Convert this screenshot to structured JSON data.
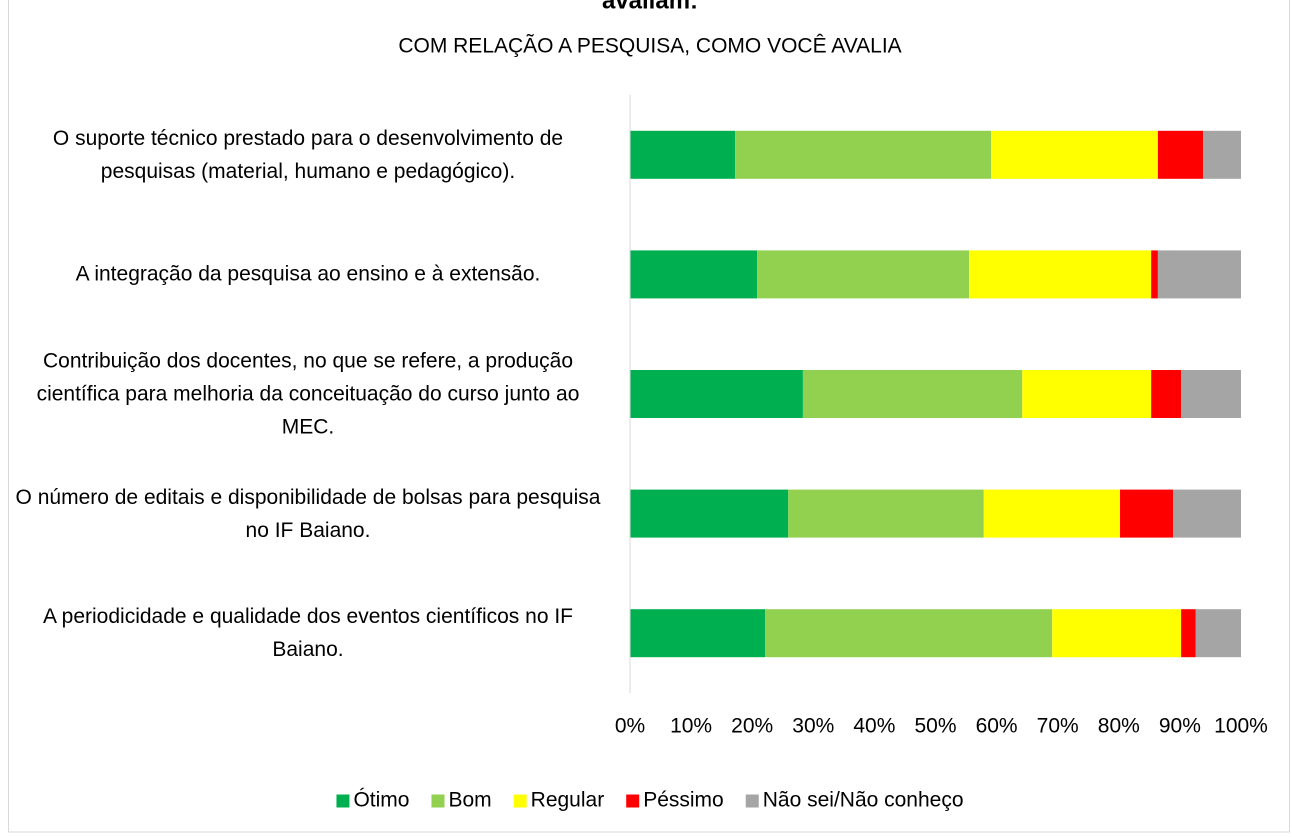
{
  "chart_data": {
    "type": "stacked-bar-horizontal",
    "title": "avaliam:",
    "subtitle": "COM RELAÇÃO A PESQUISA, COMO VOCÊ AVALIA",
    "categories": [
      "O suporte técnico prestado para o desenvolvimento de pesquisas (material, humano e pedagógico).",
      "A integração da pesquisa ao ensino e à extensão.",
      "Contribuição dos docentes, no que se refere, a produção científica para melhoria da conceituação do curso junto ao MEC.",
      "O número de editais e disponibilidade de bolsas para pesquisa no IF Baiano.",
      "A periodicidade e qualidade dos eventos científicos no IF Baiano."
    ],
    "series": [
      {
        "name": "Ótimo",
        "color": "#00b050",
        "values": [
          17.2,
          20.8,
          28.3,
          25.9,
          22.1
        ]
      },
      {
        "name": "Bom",
        "color": "#92d050",
        "values": [
          41.9,
          34.7,
          35.9,
          32.0,
          47.0
        ]
      },
      {
        "name": "Regular",
        "color": "#ffff00",
        "values": [
          27.3,
          29.8,
          21.1,
          22.3,
          21.1
        ]
      },
      {
        "name": "Péssimo",
        "color": "#ff0000",
        "values": [
          7.4,
          1.1,
          4.9,
          8.7,
          2.4
        ]
      },
      {
        "name": "Não sei/Não conheço",
        "color": "#a5a5a5",
        "values": [
          6.2,
          13.6,
          9.8,
          11.1,
          7.4
        ]
      }
    ],
    "xlim": [
      0,
      100
    ],
    "xticks": [
      {
        "value": 0,
        "label": "0%"
      },
      {
        "value": 10,
        "label": "10%"
      },
      {
        "value": 20,
        "label": "20%"
      },
      {
        "value": 30,
        "label": "30%"
      },
      {
        "value": 40,
        "label": "40%"
      },
      {
        "value": 50,
        "label": "50%"
      },
      {
        "value": 60,
        "label": "60%"
      },
      {
        "value": 70,
        "label": "70%"
      },
      {
        "value": 80,
        "label": "80%"
      },
      {
        "value": 90,
        "label": "90%"
      },
      {
        "value": 100,
        "label": "100%"
      }
    ],
    "legend": "bottom"
  }
}
